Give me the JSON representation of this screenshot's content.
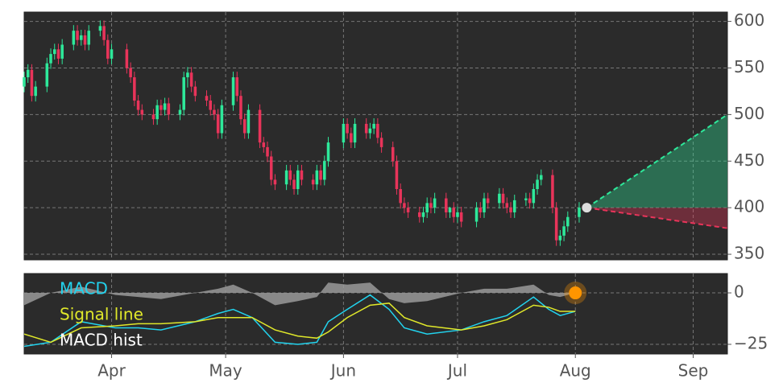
{
  "chart_data": {
    "type": "candlestick",
    "xlim": [
      -23,
      162
    ],
    "xticks": [
      {
        "value": 0,
        "label": "Apr"
      },
      {
        "value": 30,
        "label": "May"
      },
      {
        "value": 61,
        "label": "Jun"
      },
      {
        "value": 91,
        "label": "Jul"
      },
      {
        "value": 122,
        "label": "Aug"
      },
      {
        "value": 153,
        "label": "Sep"
      }
    ],
    "ylim": [
      344,
      610
    ],
    "yticks": [
      350,
      400,
      450,
      500,
      550,
      600
    ],
    "grid": true,
    "up_color": "#2ee89a",
    "down_color": "#e8345a",
    "candles": {
      "x": [
        -23,
        -22,
        -21,
        -20,
        -17,
        -16,
        -15,
        -14,
        -13,
        -10,
        -9,
        -8,
        -7,
        -6,
        -3,
        -2,
        -1,
        0,
        4,
        5,
        6,
        7,
        8,
        11,
        12,
        13,
        14,
        15,
        18,
        19,
        20,
        21,
        22,
        25,
        26,
        27,
        28,
        29,
        32,
        33,
        34,
        35,
        36,
        39,
        40,
        41,
        42,
        43,
        46,
        47,
        48,
        49,
        50,
        53,
        54,
        55,
        56,
        57,
        61,
        62,
        63,
        64,
        67,
        68,
        69,
        70,
        71,
        74,
        75,
        76,
        77,
        78,
        81,
        82,
        83,
        84,
        85,
        88,
        89,
        90,
        91,
        92,
        96,
        97,
        98,
        99,
        102,
        103,
        104,
        105,
        106,
        109,
        110,
        111,
        112,
        113,
        116,
        117,
        118,
        119,
        120,
        123
      ],
      "open": [
        530,
        540,
        548,
        520,
        530,
        555,
        565,
        570,
        560,
        575,
        590,
        580,
        585,
        575,
        590,
        595,
        580,
        560,
        570,
        550,
        540,
        515,
        505,
        500,
        495,
        510,
        505,
        512,
        500,
        505,
        540,
        545,
        530,
        520,
        515,
        505,
        500,
        480,
        510,
        540,
        520,
        495,
        480,
        505,
        470,
        465,
        455,
        430,
        425,
        440,
        430,
        420,
        440,
        430,
        425,
        440,
        430,
        450,
        470,
        490,
        480,
        470,
        490,
        480,
        485,
        490,
        475,
        465,
        450,
        420,
        405,
        400,
        395,
        390,
        395,
        405,
        400,
        410,
        395,
        400,
        390,
        395,
        385,
        400,
        395,
        410,
        405,
        415,
        405,
        400,
        395,
        408,
        410,
        405,
        420,
        430,
        435,
        400,
        365,
        370,
        380,
        390
      ],
      "high": [
        546,
        554,
        554,
        536,
        561,
        571,
        576,
        576,
        581,
        596,
        596,
        591,
        591,
        596,
        601,
        601,
        586,
        576,
        576,
        556,
        546,
        521,
        511,
        506,
        516,
        516,
        518,
        518,
        511,
        546,
        551,
        551,
        536,
        526,
        521,
        511,
        506,
        516,
        546,
        546,
        526,
        501,
        511,
        511,
        476,
        471,
        461,
        436,
        446,
        446,
        436,
        446,
        446,
        436,
        446,
        446,
        456,
        476,
        496,
        496,
        486,
        496,
        496,
        491,
        496,
        496,
        481,
        471,
        456,
        426,
        411,
        406,
        401,
        401,
        411,
        411,
        416,
        416,
        401,
        406,
        401,
        401,
        406,
        406,
        416,
        416,
        421,
        421,
        411,
        406,
        414,
        416,
        416,
        426,
        436,
        441,
        441,
        406,
        376,
        386,
        396,
        406
      ],
      "low": [
        524,
        534,
        514,
        514,
        524,
        549,
        559,
        554,
        554,
        569,
        574,
        574,
        569,
        569,
        584,
        574,
        554,
        554,
        544,
        534,
        509,
        499,
        494,
        489,
        489,
        499,
        499,
        494,
        494,
        499,
        529,
        524,
        514,
        509,
        499,
        494,
        474,
        474,
        504,
        514,
        489,
        474,
        474,
        464,
        459,
        449,
        424,
        419,
        419,
        424,
        414,
        414,
        424,
        419,
        419,
        424,
        424,
        444,
        464,
        474,
        464,
        464,
        474,
        474,
        479,
        469,
        459,
        444,
        414,
        399,
        394,
        389,
        384,
        384,
        389,
        394,
        394,
        389,
        389,
        384,
        384,
        379,
        379,
        389,
        389,
        399,
        399,
        399,
        394,
        389,
        389,
        402,
        399,
        399,
        414,
        424,
        394,
        359,
        359,
        364,
        374,
        384
      ],
      "close": [
        540,
        548,
        520,
        530,
        555,
        565,
        570,
        560,
        575,
        590,
        580,
        585,
        575,
        590,
        595,
        580,
        560,
        570,
        550,
        540,
        515,
        505,
        500,
        495,
        510,
        505,
        512,
        500,
        505,
        540,
        545,
        530,
        520,
        515,
        505,
        500,
        480,
        510,
        540,
        520,
        495,
        480,
        505,
        470,
        465,
        455,
        430,
        425,
        440,
        430,
        420,
        440,
        430,
        425,
        440,
        430,
        450,
        470,
        490,
        480,
        470,
        490,
        480,
        485,
        490,
        475,
        465,
        450,
        420,
        405,
        400,
        395,
        390,
        395,
        405,
        400,
        410,
        395,
        400,
        390,
        395,
        385,
        400,
        395,
        410,
        405,
        415,
        405,
        400,
        395,
        408,
        410,
        405,
        420,
        430,
        435,
        400,
        365,
        370,
        380,
        390,
        400
      ]
    },
    "projection": {
      "x": [
        125,
        162
      ],
      "upper": [
        400,
        500
      ],
      "lower": [
        400,
        378
      ],
      "upper_color": "#2ee89a",
      "lower_color": "#e8345a"
    },
    "macd": {
      "ylim": [
        -29.7,
        9.4
      ],
      "yticks": [
        0,
        {
          "value": -25,
          "label": "−25"
        }
      ],
      "x": [
        -23,
        -16,
        -8,
        1,
        7,
        13,
        22,
        28,
        32,
        37,
        43,
        49,
        54,
        57,
        62,
        68,
        73,
        77,
        83,
        92,
        98,
        104,
        111,
        115,
        118,
        122
      ],
      "series": [
        {
          "name": "MACD",
          "color": "#22d3ee",
          "values": [
            -26,
            -24,
            -14,
            -17,
            -17,
            -18,
            -14,
            -10,
            -8,
            -12,
            -24,
            -25,
            -24,
            -14,
            -8,
            -1,
            -8,
            -17,
            -20,
            -18,
            -14,
            -11,
            -2,
            -8,
            -11,
            -9
          ]
        },
        {
          "name": "Signal line",
          "color": "#e0e82a",
          "values": [
            -20,
            -24,
            -17,
            -16,
            -15,
            -15,
            -14,
            -12,
            -12,
            -12,
            -18,
            -21,
            -22,
            -19,
            -12,
            -6,
            -5,
            -12,
            -16,
            -18,
            -16,
            -13,
            -6,
            -7,
            -9,
            -9
          ]
        },
        {
          "name": "MACD hist",
          "color": "#9a9a9a",
          "values": [
            -6,
            0,
            3,
            -1,
            -2,
            -3,
            0,
            2,
            4,
            0,
            -6,
            -4,
            -2,
            5,
            4,
            5,
            -3,
            -5,
            -4,
            0,
            2,
            2,
            4,
            -1,
            -2,
            0
          ]
        }
      ],
      "marker": {
        "x": 122,
        "value": 0,
        "color": "#ff9500"
      }
    }
  }
}
